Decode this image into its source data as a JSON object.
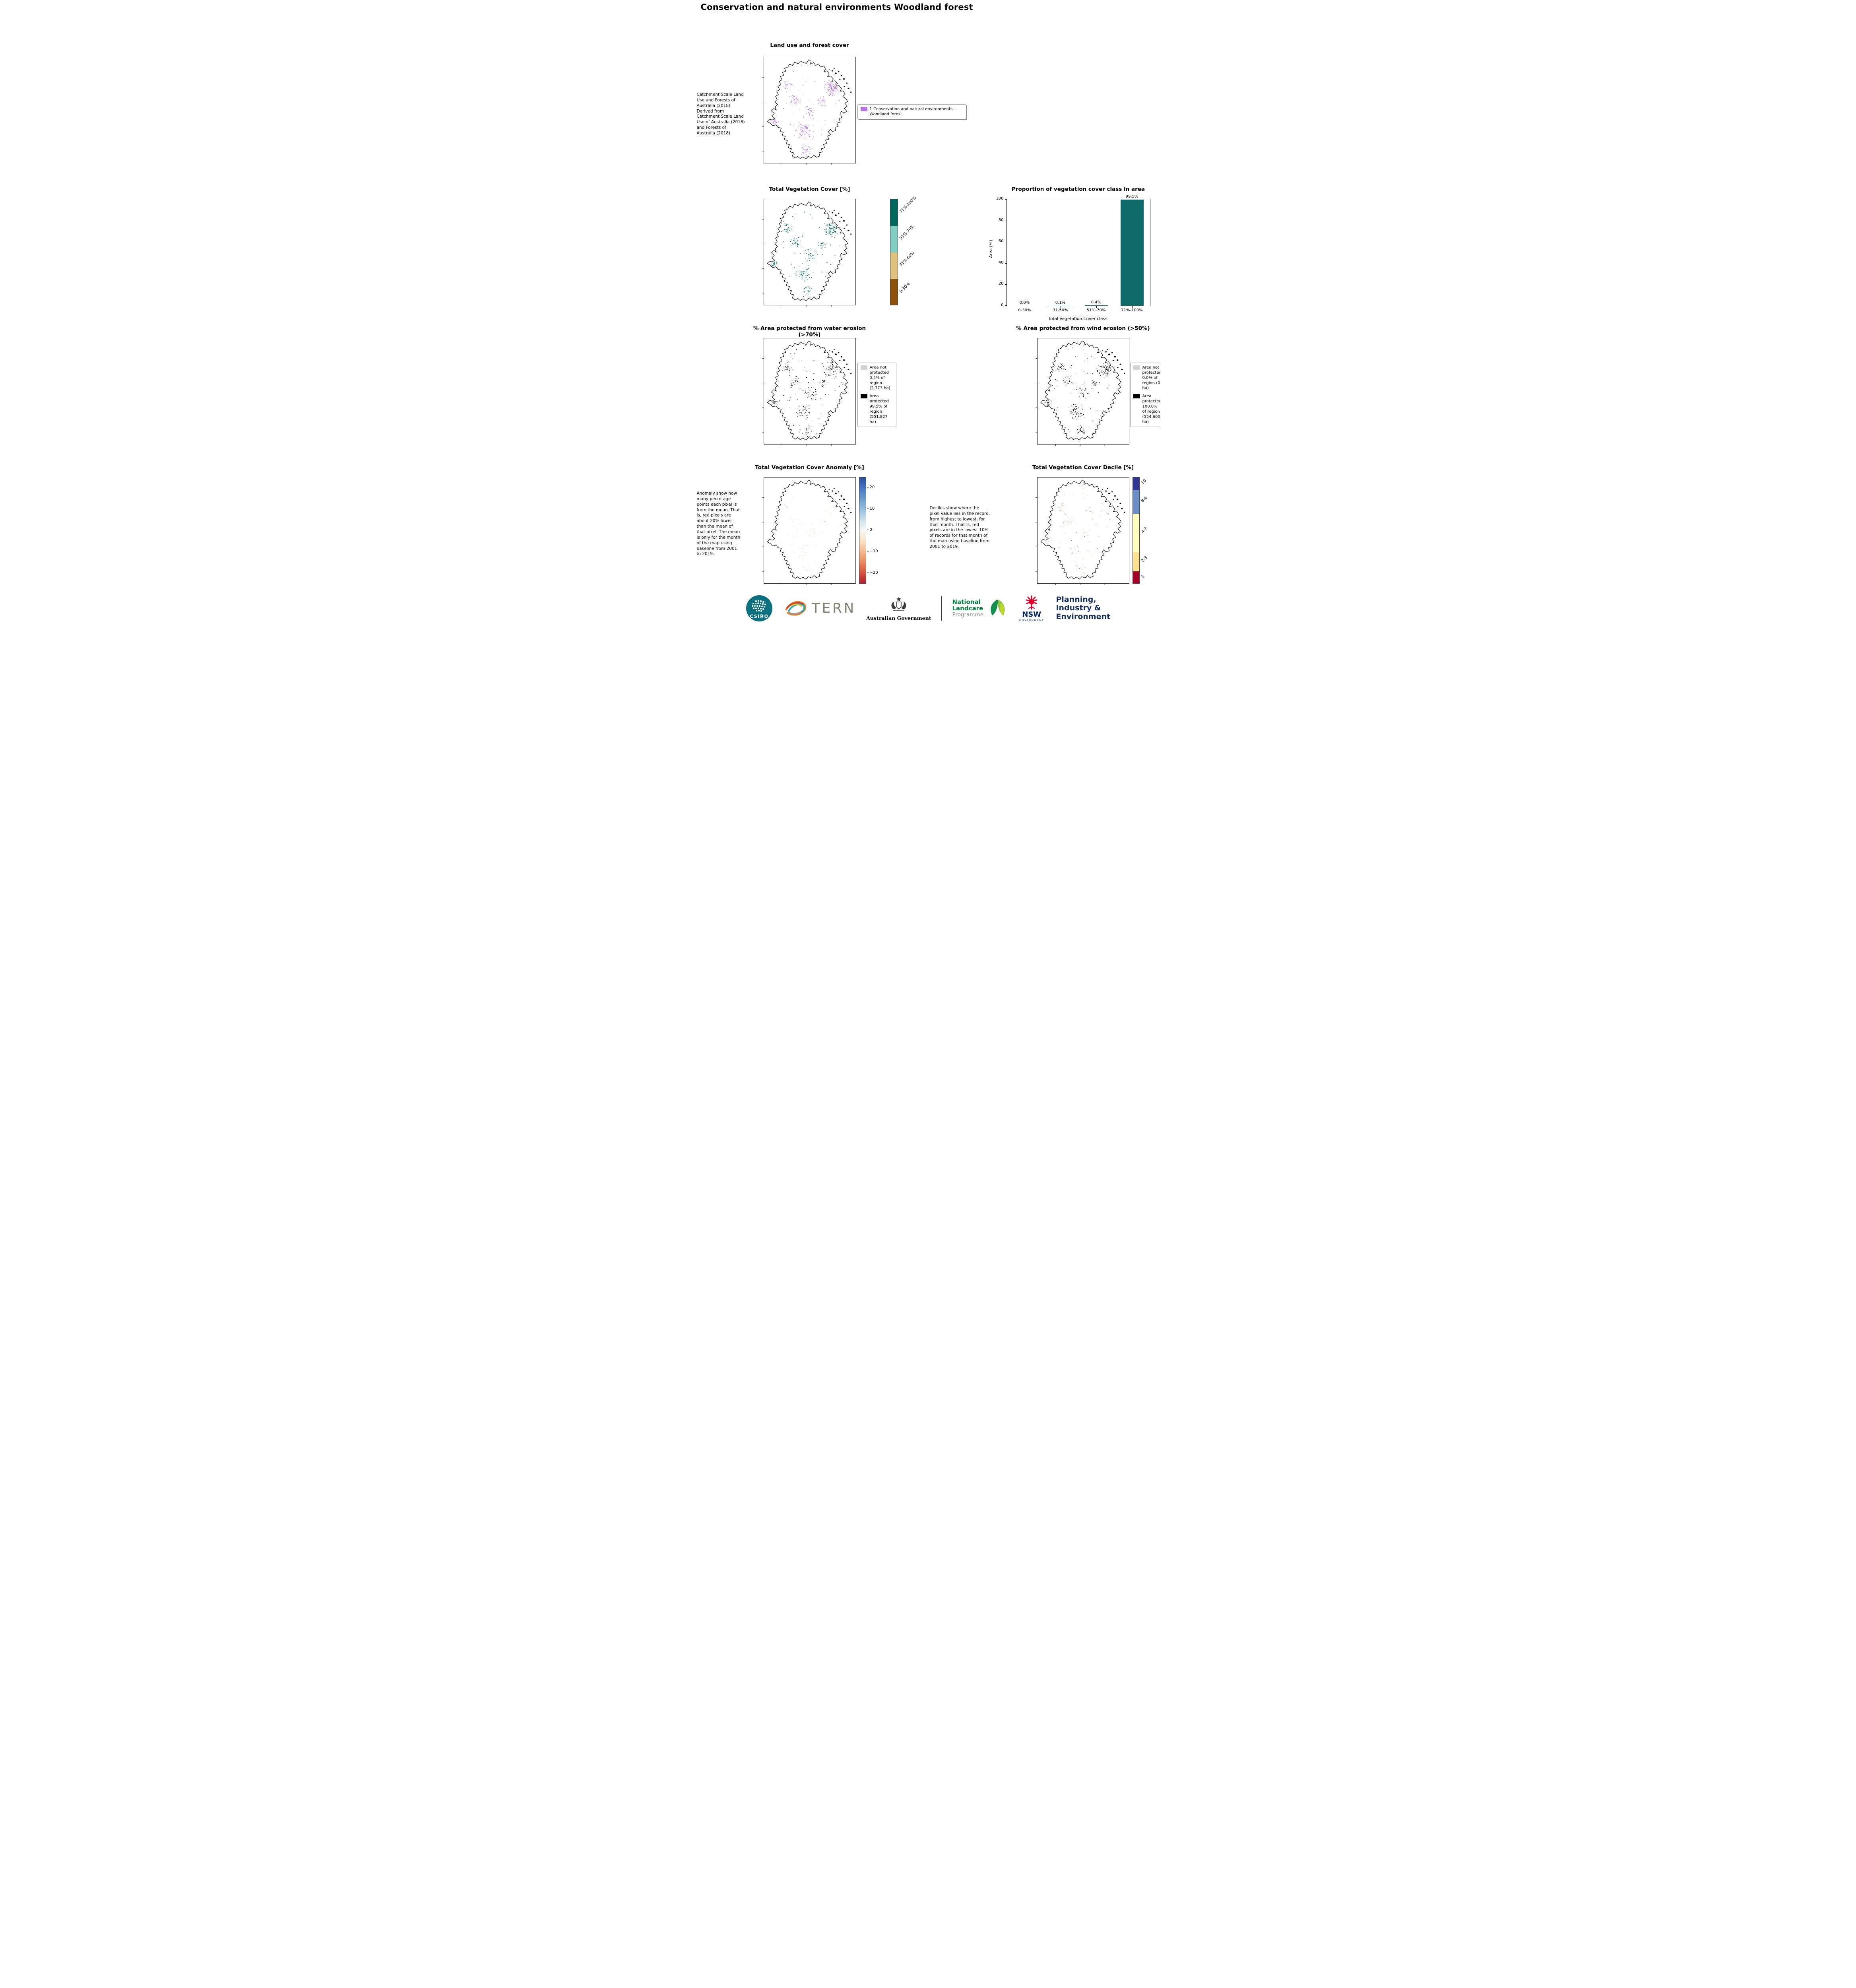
{
  "page": {
    "title": "Conservation and natural environments Woodland forest"
  },
  "land_use": {
    "title": "Land use and forest cover",
    "caption": "Catchment Scale Land Use and Forests of Australia (2018) Derived from Catchment Scale Land Use of Australia (2018) and Forests of Australia (2018)",
    "legend_label": "1 Conservation and natural environments - Woodland forest",
    "legend_color": "#b873e8"
  },
  "veg_cover": {
    "title": "Total Vegetation Cover [%]",
    "colorbar": [
      {
        "label": "71%-100%",
        "color": "#01665e"
      },
      {
        "label": "51%-70%",
        "color": "#80cdc1"
      },
      {
        "label": "31%-50%",
        "color": "#dfc27d"
      },
      {
        "label": "0-30%",
        "color": "#8c510a"
      }
    ]
  },
  "chart_data": {
    "type": "bar",
    "title": "Proportion of vegetation cover class in area",
    "categories": [
      "0-30%",
      "31-50%",
      "51%-70%",
      "71%-100%"
    ],
    "values": [
      0.0,
      0.1,
      0.4,
      99.5
    ],
    "bar_labels": [
      "0.0%",
      "0.1%",
      "0.4%",
      "99.5%"
    ],
    "xlabel": "Total Vegetation Cover class",
    "ylabel": "Area (%)",
    "ylim": [
      0,
      100
    ],
    "yticks": [
      0,
      20,
      40,
      60,
      80,
      100
    ],
    "bar_color": "#0d6a68",
    "grid": false,
    "legend": "none"
  },
  "water_erosion": {
    "title": "% Area protected from water erosion (>70%)",
    "legend": [
      {
        "label": "Area not protected 0.5% of region (2,773 ha)",
        "color": "#d3d3d3"
      },
      {
        "label": "Area protected 99.5% of region (551,827 ha)",
        "color": "#000000"
      }
    ]
  },
  "wind_erosion": {
    "title": "% Area protected from wind erosion (>50%)",
    "legend": [
      {
        "label": "Area not protected 0.0% of region (0 ha)",
        "color": "#d3d3d3"
      },
      {
        "label": "Area protected 100.0% of region (554,600 ha)",
        "color": "#000000"
      }
    ]
  },
  "anomaly": {
    "title": "Total Vegetation Cover Anomaly [%]",
    "caption": "Anomaly show how many percetage points each pixel is from the mean. That is, red pixels are about 20% lower than the mean of that pixel. The mean is only for the month of the map using baseline from 2001 to 2019.",
    "colorbar_ticks": [
      "20",
      "10",
      "0",
      "−10",
      "−20"
    ]
  },
  "decile": {
    "title": "Total Vegetation Cover Decile [%]",
    "caption": "Deciles show where the pixel value lies in the record, from highest to lowest, for that month. That is, red pixels are in the lowest 10% of records for that month of the map using baseline from 2001 to 2019.",
    "colorbar": [
      {
        "label": "10",
        "color": "#313695",
        "h": 12
      },
      {
        "label": "8-9",
        "color": "#6b8ec4",
        "h": 22
      },
      {
        "label": "4-7",
        "color": "#ffffbf",
        "h": 36
      },
      {
        "label": "2-3",
        "color": "#fee090",
        "h": 18
      },
      {
        "label": "1",
        "color": "#a50026",
        "h": 12
      }
    ]
  },
  "footer": {
    "csiro": "CSIRO",
    "tern": "TERN",
    "aus_gov": "Australian Government",
    "landcare": [
      "National",
      "Landcare",
      "Programme"
    ],
    "nsw": "NSW",
    "nsw_sub": "GOVERNMENT",
    "planning": [
      "Planning,",
      "Industry &",
      "Environment"
    ]
  }
}
